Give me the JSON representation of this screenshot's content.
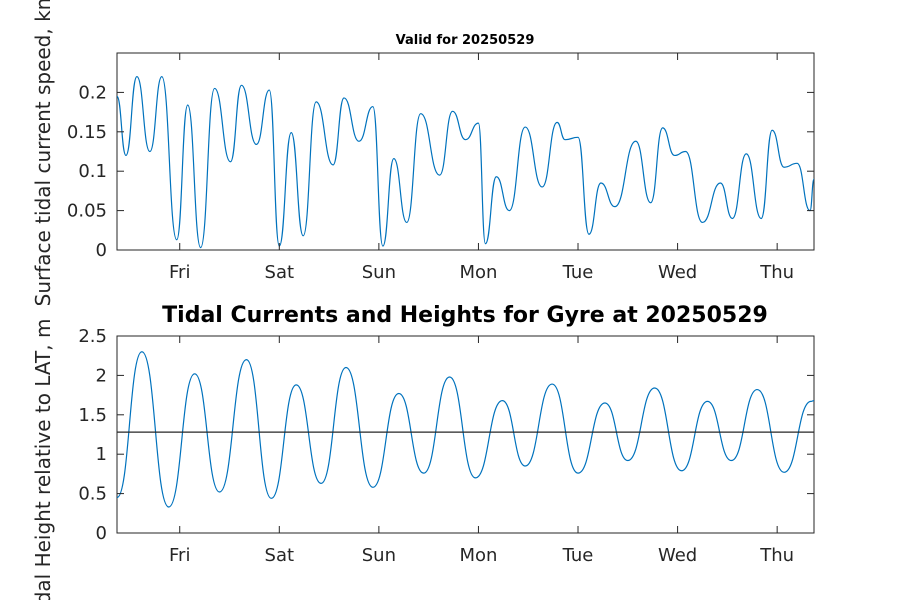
{
  "figure": {
    "title_top": "Valid for 20250529",
    "title_bottom": "Tidal Currents and Heights for Gyre at 20250529"
  },
  "chart_data": [
    {
      "type": "line",
      "title": "Valid for 20250529",
      "xlabel": "",
      "ylabel": "Surface tidal current speed, kn",
      "xlim": [
        0,
        7
      ],
      "ylim": [
        0,
        0.25
      ],
      "x_ticks": [
        0.63,
        1.63,
        2.63,
        3.63,
        4.63,
        5.63,
        6.63
      ],
      "x_tick_labels": [
        "Fri",
        "Sat",
        "Sun",
        "Mon",
        "Tue",
        "Wed",
        "Thu"
      ],
      "y_ticks": [
        0,
        0.05,
        0.1,
        0.15,
        0.2
      ],
      "y_tick_labels": [
        "0",
        "0.05",
        "0.1",
        "0.15",
        "0.2"
      ],
      "grid": false,
      "series": [
        {
          "color": "#0072bd",
          "x": [
            0,
            0.09,
            0.2,
            0.33,
            0.45,
            0.6,
            0.71,
            0.84,
            0.98,
            1.14,
            1.25,
            1.4,
            1.53,
            1.63,
            1.75,
            1.87,
            2.0,
            2.17,
            2.28,
            2.43,
            2.57,
            2.67,
            2.78,
            2.91,
            3.05,
            3.24,
            3.37,
            3.5,
            3.63,
            3.7,
            3.81,
            3.94,
            4.1,
            4.27,
            4.42,
            4.5,
            4.63,
            4.74,
            4.86,
            5.0,
            5.21,
            5.36,
            5.48,
            5.6,
            5.71,
            5.88,
            6.06,
            6.18,
            6.32,
            6.47,
            6.58,
            6.7,
            6.83,
            6.96,
            7.0
          ],
          "y": [
            0.195,
            0.12,
            0.22,
            0.125,
            0.22,
            0.013,
            0.184,
            0.003,
            0.205,
            0.112,
            0.209,
            0.134,
            0.203,
            0.005,
            0.149,
            0.018,
            0.188,
            0.108,
            0.193,
            0.138,
            0.182,
            0.005,
            0.116,
            0.035,
            0.173,
            0.095,
            0.176,
            0.14,
            0.161,
            0.008,
            0.093,
            0.05,
            0.156,
            0.08,
            0.162,
            0.14,
            0.143,
            0.02,
            0.085,
            0.055,
            0.138,
            0.06,
            0.155,
            0.12,
            0.125,
            0.035,
            0.085,
            0.04,
            0.122,
            0.04,
            0.152,
            0.105,
            0.11,
            0.05,
            0.09
          ]
        }
      ]
    },
    {
      "type": "line",
      "title": "Tidal Currents and Heights for Gyre at 20250529",
      "xlabel": "",
      "ylabel": "Tidal Height relative to LAT, m",
      "xlim": [
        0,
        7
      ],
      "ylim": [
        0,
        2.5
      ],
      "x_ticks": [
        0.63,
        1.63,
        2.63,
        3.63,
        4.63,
        5.63,
        6.63
      ],
      "x_tick_labels": [
        "Fri",
        "Sat",
        "Sun",
        "Mon",
        "Tue",
        "Wed",
        "Thu"
      ],
      "y_ticks": [
        0,
        0.5,
        1,
        1.5,
        2,
        2.5
      ],
      "y_tick_labels": [
        "0",
        "0.5",
        "1",
        "1.5",
        "2",
        "2.5"
      ],
      "grid": false,
      "series": [
        {
          "color": "#0072bd",
          "x": [
            0,
            0.25,
            0.52,
            0.78,
            1.03,
            1.3,
            1.55,
            1.8,
            2.05,
            2.3,
            2.57,
            2.83,
            3.08,
            3.34,
            3.6,
            3.87,
            4.1,
            4.37,
            4.63,
            4.9,
            5.13,
            5.4,
            5.67,
            5.93,
            6.17,
            6.43,
            6.7,
            6.97,
            7.0
          ],
          "y": [
            0.45,
            2.3,
            0.33,
            2.02,
            0.52,
            2.2,
            0.44,
            1.88,
            0.63,
            2.1,
            0.58,
            1.77,
            0.76,
            1.98,
            0.7,
            1.68,
            0.85,
            1.89,
            0.76,
            1.65,
            0.92,
            1.84,
            0.79,
            1.67,
            0.92,
            1.82,
            0.77,
            1.67,
            1.68
          ]
        },
        {
          "color": "#262626",
          "x": [
            0,
            7
          ],
          "y": [
            1.28,
            1.28
          ]
        }
      ]
    }
  ]
}
